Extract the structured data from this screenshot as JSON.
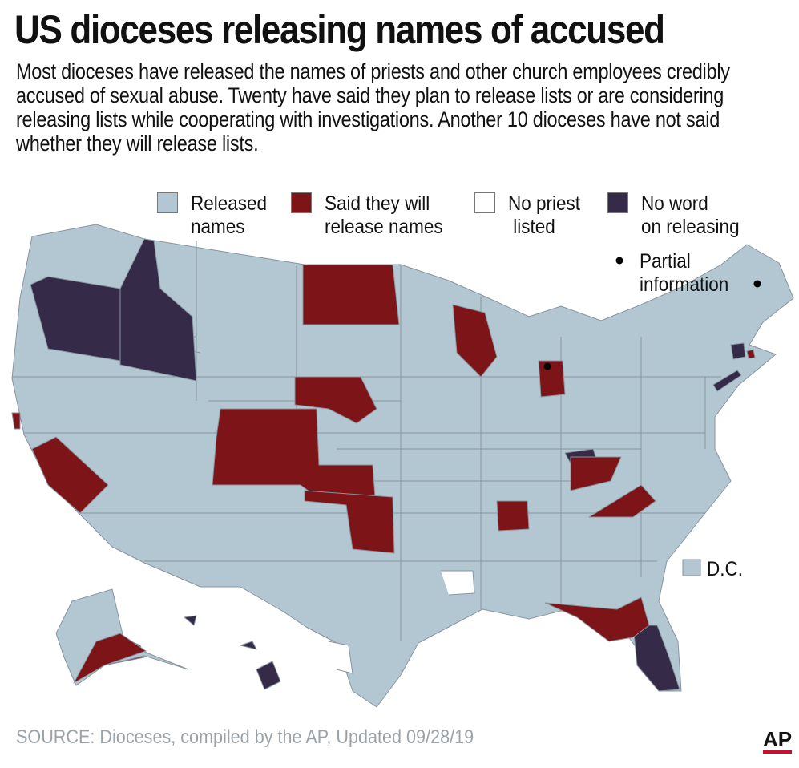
{
  "header": {
    "title": "US dioceses releasing names of accused",
    "subtitle": "Most dioceses have released the names of priests and other church employees credibly accused of sexual abuse. Twenty have said they plan to release lists or are considering releasing lists while cooperating with investigations. Another 10 dioceses have not said whether they will release lists."
  },
  "legend": {
    "items": [
      {
        "lines": [
          "Released",
          "names"
        ],
        "color": "#b3c7d2"
      },
      {
        "lines": [
          "Said they will",
          "release names"
        ],
        "color": "#7d1518"
      },
      {
        "lines": [
          "No priest",
          " listed"
        ],
        "color": "#ffffff"
      },
      {
        "lines": [
          "No word",
          "on releasing"
        ],
        "color": "#352a47"
      }
    ],
    "partial": [
      "Partial",
      "information"
    ]
  },
  "map": {
    "dc_label": "D.C."
  },
  "footer": {
    "source": "SOURCE: Dioceses, compiled by the AP, Updated 09/28/19",
    "logo": "AP"
  }
}
